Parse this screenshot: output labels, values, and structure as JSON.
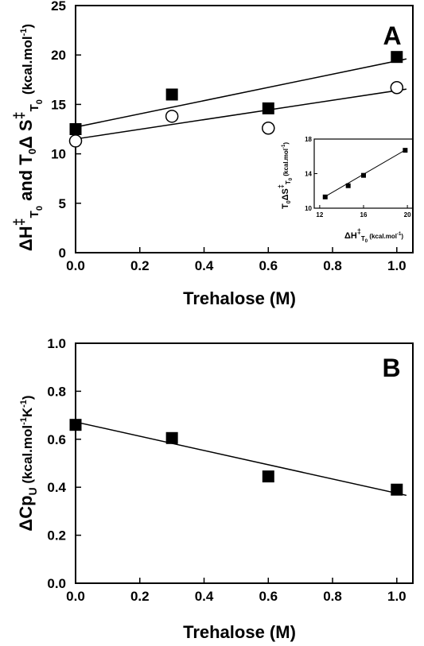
{
  "chart_data": [
    {
      "panel": "A",
      "type": "scatter",
      "xlabel": "Trehalose (M)",
      "ylabel_parts": {
        "delta1": "Δ",
        "H": "H",
        "dagger1": "‡",
        "sub1": "T",
        "sub1b": "0",
        "and": " and ",
        "T0": "T",
        "T0sub": "0",
        "delta2": "Δ",
        "S": " S",
        "dagger2": "‡",
        "sub2": "T",
        "sub2b": "0",
        "units": "(kcal.mol",
        "units_sup": "-1",
        "units_close": ")"
      },
      "xlim": [
        0,
        1.05
      ],
      "ylim": [
        0,
        25
      ],
      "xticks": [
        "0.0",
        "0.2",
        "0.4",
        "0.6",
        "0.8",
        "1.0"
      ],
      "yticks": [
        "0",
        "5",
        "10",
        "15",
        "20",
        "25"
      ],
      "series": [
        {
          "marker": "filled-square",
          "x": [
            0.0,
            0.3,
            0.6,
            1.0
          ],
          "y": [
            12.5,
            16.0,
            14.6,
            19.8
          ],
          "fit": [
            12.7,
            19.4
          ]
        },
        {
          "marker": "open-circle",
          "x": [
            0.0,
            0.3,
            0.6,
            1.0
          ],
          "y": [
            11.3,
            13.8,
            12.6,
            16.7
          ],
          "fit": [
            11.5,
            16.4
          ]
        }
      ],
      "inset": {
        "type": "scatter",
        "xlabel_parts": {
          "delta": "Δ",
          "H": "H",
          "dagger": "‡",
          "sub": "T",
          "subb": "0",
          "units": " (kcal.mol",
          "units_sup": "-1",
          "units_close": ")"
        },
        "ylabel_parts": {
          "T": "T",
          "Tsub": "0",
          "delta": "Δ",
          "S": "S",
          "dagger": "‡",
          "sub": "T",
          "subb": "0",
          "units": " (kcal.mol",
          "units_sup": "-1",
          "units_close": ")"
        },
        "xlim": [
          11.5,
          20.5
        ],
        "ylim": [
          10,
          18
        ],
        "xticks": [
          "12",
          "16",
          "20"
        ],
        "yticks": [
          "10",
          "14",
          "18"
        ],
        "x": [
          12.5,
          14.6,
          16.0,
          19.8
        ],
        "y": [
          11.3,
          12.6,
          13.8,
          16.7
        ],
        "fit": {
          "x": [
            12.3,
            19.9
          ],
          "y": [
            11.2,
            16.8
          ]
        }
      }
    },
    {
      "panel": "B",
      "type": "scatter",
      "xlabel": "Trehalose (M)",
      "ylabel_parts": {
        "delta": "Δ",
        "main": "Cp",
        "sub": "U",
        "units": " (kcal.mol",
        "sup1": "-1",
        "mid": "K",
        "sup2": "-1",
        "close": ")"
      },
      "xlim": [
        0,
        1.05
      ],
      "ylim": [
        0,
        1.0
      ],
      "xticks": [
        "0.0",
        "0.2",
        "0.4",
        "0.6",
        "0.8",
        "1.0"
      ],
      "yticks": [
        "0.0",
        "0.2",
        "0.4",
        "0.6",
        "0.8",
        "1.0"
      ],
      "series": [
        {
          "marker": "filled-square",
          "x": [
            0.0,
            0.3,
            0.6,
            1.0
          ],
          "y": [
            0.66,
            0.605,
            0.445,
            0.39
          ],
          "fit": [
            0.672,
            0.375
          ]
        }
      ]
    }
  ]
}
